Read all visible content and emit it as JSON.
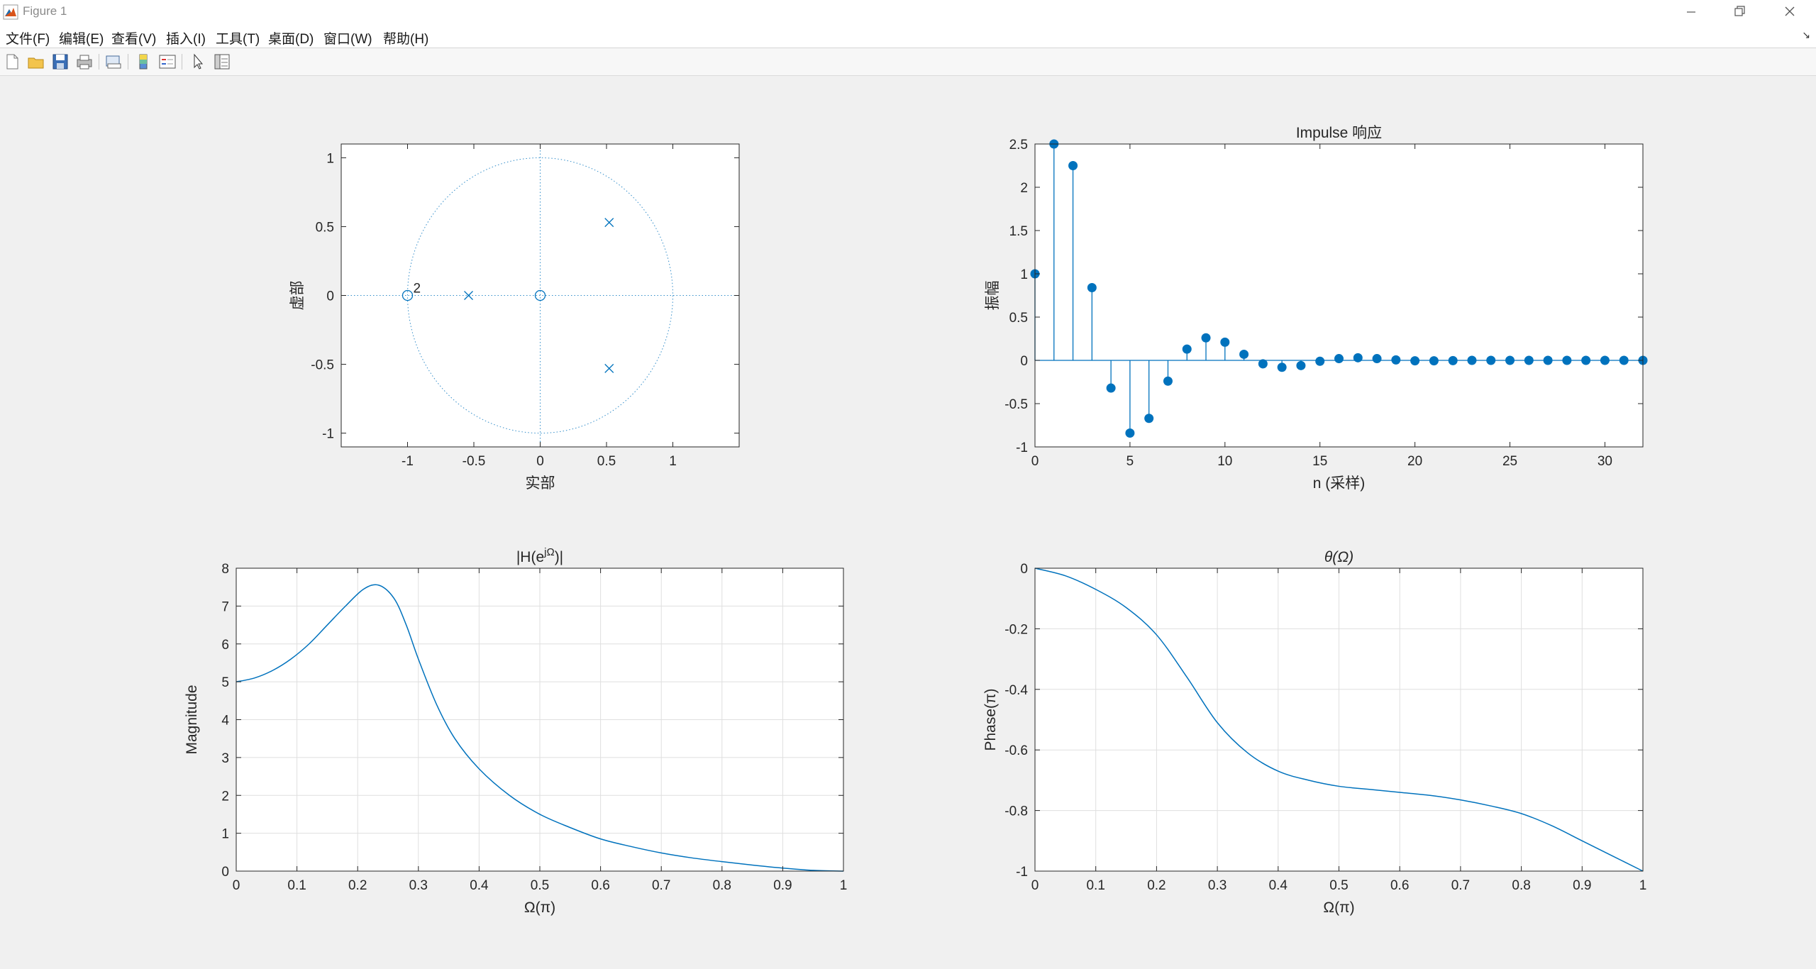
{
  "window": {
    "title": "Figure 1"
  },
  "menu": [
    "文件(F)",
    "编辑(E)",
    "查看(V)",
    "插入(I)",
    "工具(T)",
    "桌面(D)",
    "窗口(W)",
    "帮助(H)"
  ],
  "toolbar": {
    "icons": [
      "new-figure-icon",
      "open-file-icon",
      "save-icon",
      "print-icon",
      "print-preview-icon",
      "colorbar-icon",
      "legend-icon",
      "select-arrow-icon",
      "property-inspector-icon"
    ]
  },
  "colors": {
    "line": "#0072bd",
    "axes_text": "#262626",
    "grid": "#dfdfdf",
    "figure_bg": "#f0f0f0"
  },
  "chart_data": [
    {
      "type": "scatter",
      "title": "",
      "xlabel": "实部",
      "ylabel": "虚部",
      "xlim": [
        -1.5,
        1.5
      ],
      "ylim": [
        -1.1,
        1.1
      ],
      "xticks": [
        -1,
        -0.5,
        0,
        0.5,
        1
      ],
      "yticks": [
        -1,
        -0.5,
        0,
        0.5,
        1
      ],
      "xtick_labels": [
        "-1",
        "-0.5",
        "0",
        "0.5",
        "1"
      ],
      "ytick_labels": [
        "-1",
        "-0.5",
        "0",
        "0.5",
        "1"
      ],
      "unit_circle": true,
      "zeros": [
        {
          "x": -1,
          "y": 0,
          "multiplicity_label": "2"
        },
        {
          "x": 0,
          "y": 0,
          "multiplicity_label": ""
        }
      ],
      "poles": [
        {
          "x": -0.54,
          "y": 0
        },
        {
          "x": 0.52,
          "y": 0.53
        },
        {
          "x": 0.52,
          "y": -0.53
        }
      ],
      "grid": false
    },
    {
      "type": "stem",
      "title": "Impulse 响应",
      "xlabel": "n (采样)",
      "ylabel": "振幅",
      "xlim": [
        0,
        32
      ],
      "ylim": [
        -1,
        2.5
      ],
      "xticks": [
        0,
        5,
        10,
        15,
        20,
        25,
        30
      ],
      "yticks": [
        -1,
        -0.5,
        0,
        0.5,
        1,
        1.5,
        2,
        2.5
      ],
      "xtick_labels": [
        "0",
        "5",
        "10",
        "15",
        "20",
        "25",
        "30"
      ],
      "ytick_labels": [
        "-1",
        "-0.5",
        "0",
        "0.5",
        "1",
        "1.5",
        "2",
        "2.5"
      ],
      "x": [
        0,
        1,
        2,
        3,
        4,
        5,
        6,
        7,
        8,
        9,
        10,
        11,
        12,
        13,
        14,
        15,
        16,
        17,
        18,
        19,
        20,
        21,
        22,
        23,
        24,
        25,
        26,
        27,
        28,
        29,
        30,
        31,
        32
      ],
      "values": [
        1,
        2.5,
        2.25,
        0.84,
        -0.32,
        -0.84,
        -0.67,
        -0.24,
        0.13,
        0.26,
        0.21,
        0.07,
        -0.04,
        -0.08,
        -0.06,
        -0.01,
        0.02,
        0.03,
        0.02,
        0.005,
        -0.005,
        -0.005,
        -0.003,
        0,
        0,
        0,
        0,
        0,
        0,
        0,
        0,
        0,
        0
      ],
      "grid": false
    },
    {
      "type": "line",
      "title": "|H(e^{jΩ})|",
      "xlabel": "Ω(π)",
      "ylabel": "Magnitude",
      "xlim": [
        0,
        1
      ],
      "ylim": [
        0,
        8
      ],
      "xticks": [
        0,
        0.1,
        0.2,
        0.3,
        0.4,
        0.5,
        0.6,
        0.7,
        0.8,
        0.9,
        1
      ],
      "yticks": [
        0,
        1,
        2,
        3,
        4,
        5,
        6,
        7,
        8
      ],
      "xtick_labels": [
        "0",
        "0.1",
        "0.2",
        "0.3",
        "0.4",
        "0.5",
        "0.6",
        "0.7",
        "0.8",
        "0.9",
        "1"
      ],
      "ytick_labels": [
        "0",
        "1",
        "2",
        "3",
        "4",
        "5",
        "6",
        "7",
        "8"
      ],
      "x": [
        0,
        0.03,
        0.06,
        0.09,
        0.12,
        0.15,
        0.18,
        0.21,
        0.235,
        0.26,
        0.28,
        0.3,
        0.33,
        0.36,
        0.4,
        0.45,
        0.5,
        0.55,
        0.6,
        0.65,
        0.7,
        0.75,
        0.8,
        0.85,
        0.9,
        0.95,
        1.0
      ],
      "values": [
        5.0,
        5.1,
        5.3,
        5.6,
        6.0,
        6.5,
        7.0,
        7.45,
        7.55,
        7.2,
        6.5,
        5.6,
        4.4,
        3.5,
        2.7,
        2.0,
        1.5,
        1.15,
        0.85,
        0.65,
        0.48,
        0.35,
        0.25,
        0.16,
        0.08,
        0.02,
        0.0
      ],
      "grid": true
    },
    {
      "type": "line",
      "title": "θ(Ω)",
      "xlabel": "Ω(π)",
      "ylabel": "Phase(π)",
      "xlim": [
        0,
        1
      ],
      "ylim": [
        -1,
        0
      ],
      "xticks": [
        0,
        0.1,
        0.2,
        0.3,
        0.4,
        0.5,
        0.6,
        0.7,
        0.8,
        0.9,
        1
      ],
      "yticks": [
        -1,
        -0.8,
        -0.6,
        -0.4,
        -0.2,
        0
      ],
      "xtick_labels": [
        "0",
        "0.1",
        "0.2",
        "0.3",
        "0.4",
        "0.5",
        "0.6",
        "0.7",
        "0.8",
        "0.9",
        "1"
      ],
      "ytick_labels": [
        "-1",
        "-0.8",
        "-0.6",
        "-0.4",
        "-0.2",
        "0"
      ],
      "x": [
        0,
        0.05,
        0.1,
        0.15,
        0.2,
        0.25,
        0.3,
        0.35,
        0.4,
        0.45,
        0.5,
        0.55,
        0.6,
        0.65,
        0.7,
        0.75,
        0.8,
        0.85,
        0.9,
        0.95,
        1.0
      ],
      "values": [
        0,
        -0.025,
        -0.07,
        -0.13,
        -0.22,
        -0.36,
        -0.51,
        -0.61,
        -0.67,
        -0.7,
        -0.72,
        -0.73,
        -0.74,
        -0.75,
        -0.765,
        -0.785,
        -0.81,
        -0.85,
        -0.9,
        -0.95,
        -1.0
      ],
      "grid": true
    }
  ]
}
